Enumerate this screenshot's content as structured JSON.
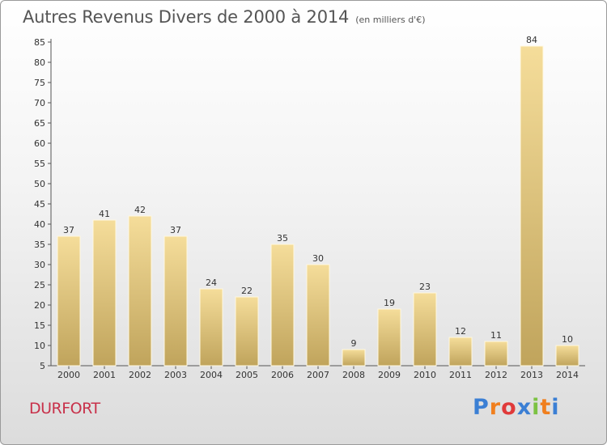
{
  "header": {
    "title": "Autres Revenus Divers de 2000 à 2014",
    "subtitle": "(en milliers d'€)"
  },
  "footer": {
    "place": "DURFORT",
    "brand_letters": [
      "P",
      "r",
      "o",
      "x",
      "i",
      "t",
      "i"
    ],
    "brand_colors": [
      "#3b7fd4",
      "#f07f1e",
      "#e03a3a",
      "#3b7fd4",
      "#7cc243",
      "#f07f1e",
      "#3b7fd4"
    ]
  },
  "colors": {
    "bar_light": "#f5dd9a",
    "bar_dark": "#c0a45c",
    "place": "#c8314a"
  },
  "chart_data": {
    "type": "bar",
    "title": "Autres Revenus Divers de 2000 à 2014",
    "subtitle": "(en milliers d'€)",
    "categories": [
      "2000",
      "2001",
      "2002",
      "2003",
      "2004",
      "2005",
      "2006",
      "2007",
      "2008",
      "2009",
      "2010",
      "2011",
      "2012",
      "2013",
      "2014"
    ],
    "values": [
      37,
      41,
      42,
      37,
      24,
      22,
      35,
      30,
      9,
      19,
      23,
      12,
      11,
      84,
      10
    ],
    "ylim": [
      5,
      85
    ],
    "yticks": [
      5,
      10,
      15,
      20,
      25,
      30,
      35,
      40,
      45,
      50,
      55,
      60,
      65,
      70,
      75,
      80,
      85
    ],
    "grid": false,
    "legend": "none"
  }
}
